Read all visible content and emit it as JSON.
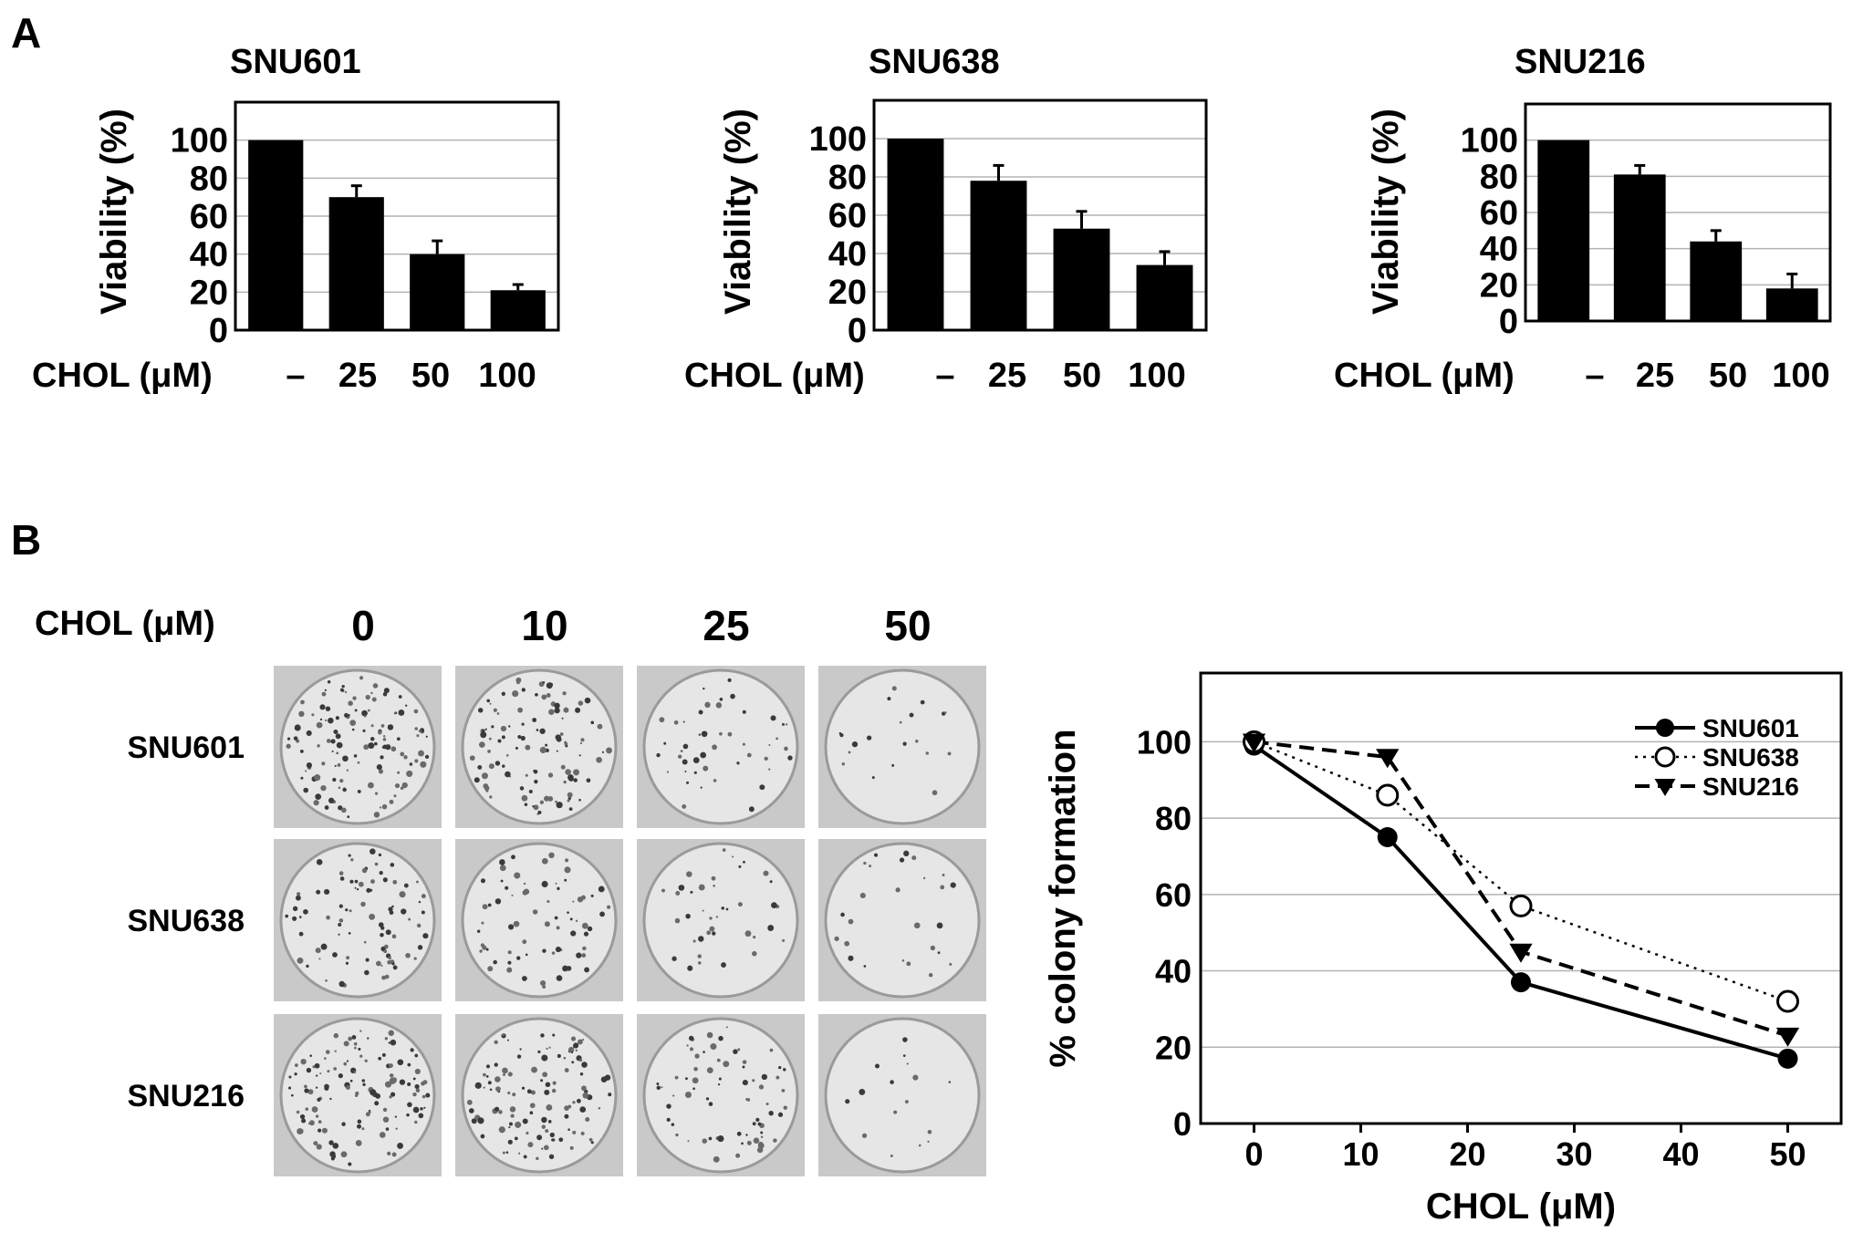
{
  "panels": {
    "a": "A",
    "b": "B"
  },
  "colors": {
    "bar": "#000000",
    "grid": "#b3b3b3",
    "plate_bg": "#c9c9c9",
    "plate_fill": "#e6e6e6"
  },
  "chart_data": [
    {
      "type": "bar",
      "title": "SNU601",
      "ylabel": "Viability (%)",
      "xlabel": "CHOL (μM)",
      "categories": [
        "–",
        "25",
        "50",
        "100"
      ],
      "values": [
        100,
        70,
        40,
        21
      ],
      "errors": [
        0,
        6,
        7,
        3
      ],
      "yticks": [
        "0",
        "20",
        "40",
        "60",
        "80",
        "100"
      ],
      "ylim": [
        0,
        120
      ],
      "grid": true
    },
    {
      "type": "bar",
      "title": "SNU638",
      "ylabel": "Viability (%)",
      "xlabel": "CHOL (μM)",
      "categories": [
        "–",
        "25",
        "50",
        "100"
      ],
      "values": [
        100,
        78,
        53,
        34
      ],
      "errors": [
        0,
        8,
        9,
        7
      ],
      "yticks": [
        "0",
        "20",
        "40",
        "60",
        "80",
        "100"
      ],
      "ylim": [
        0,
        120
      ],
      "grid": true
    },
    {
      "type": "bar",
      "title": "SNU216",
      "ylabel": "Viability (%)",
      "xlabel": "CHOL (μM)",
      "categories": [
        "–",
        "25",
        "50",
        "100"
      ],
      "values": [
        100,
        81,
        44,
        18
      ],
      "errors": [
        0,
        5,
        6,
        8
      ],
      "yticks": [
        "0",
        "20",
        "40",
        "60",
        "80",
        "100"
      ],
      "ylim": [
        0,
        120
      ],
      "grid": true
    },
    {
      "type": "line",
      "ylabel": "% colony formation",
      "xlabel": "CHOL (μM)",
      "xticks": [
        "0",
        "10",
        "20",
        "30",
        "40",
        "50"
      ],
      "yticks": [
        "0",
        "20",
        "40",
        "60",
        "80",
        "100"
      ],
      "xlim": [
        -5,
        55
      ],
      "ylim": [
        0,
        118
      ],
      "grid": true,
      "legend_position": "top-right",
      "series": [
        {
          "name": "SNU601",
          "marker": "filled-circle",
          "line": "solid",
          "x": [
            0,
            12.5,
            25,
            50
          ],
          "y": [
            99,
            75,
            37,
            17
          ]
        },
        {
          "name": "SNU638",
          "marker": "open-circle",
          "line": "dotted",
          "x": [
            0,
            12.5,
            25,
            50
          ],
          "y": [
            100,
            86,
            57,
            32
          ]
        },
        {
          "name": "SNU216",
          "marker": "filled-triangle-down",
          "line": "dashed",
          "x": [
            0,
            12.5,
            25,
            50
          ],
          "y": [
            100,
            96,
            45,
            23
          ]
        }
      ]
    }
  ],
  "colony_assay": {
    "row_header": "CHOL (μM)",
    "concentrations": [
      "0",
      "10",
      "25",
      "50"
    ],
    "cell_lines": [
      "SNU601",
      "SNU638",
      "SNU216"
    ],
    "colony_density": [
      [
        1.0,
        0.85,
        0.35,
        0.15
      ],
      [
        0.7,
        0.55,
        0.3,
        0.2
      ],
      [
        1.0,
        0.9,
        0.55,
        0.12
      ]
    ]
  }
}
